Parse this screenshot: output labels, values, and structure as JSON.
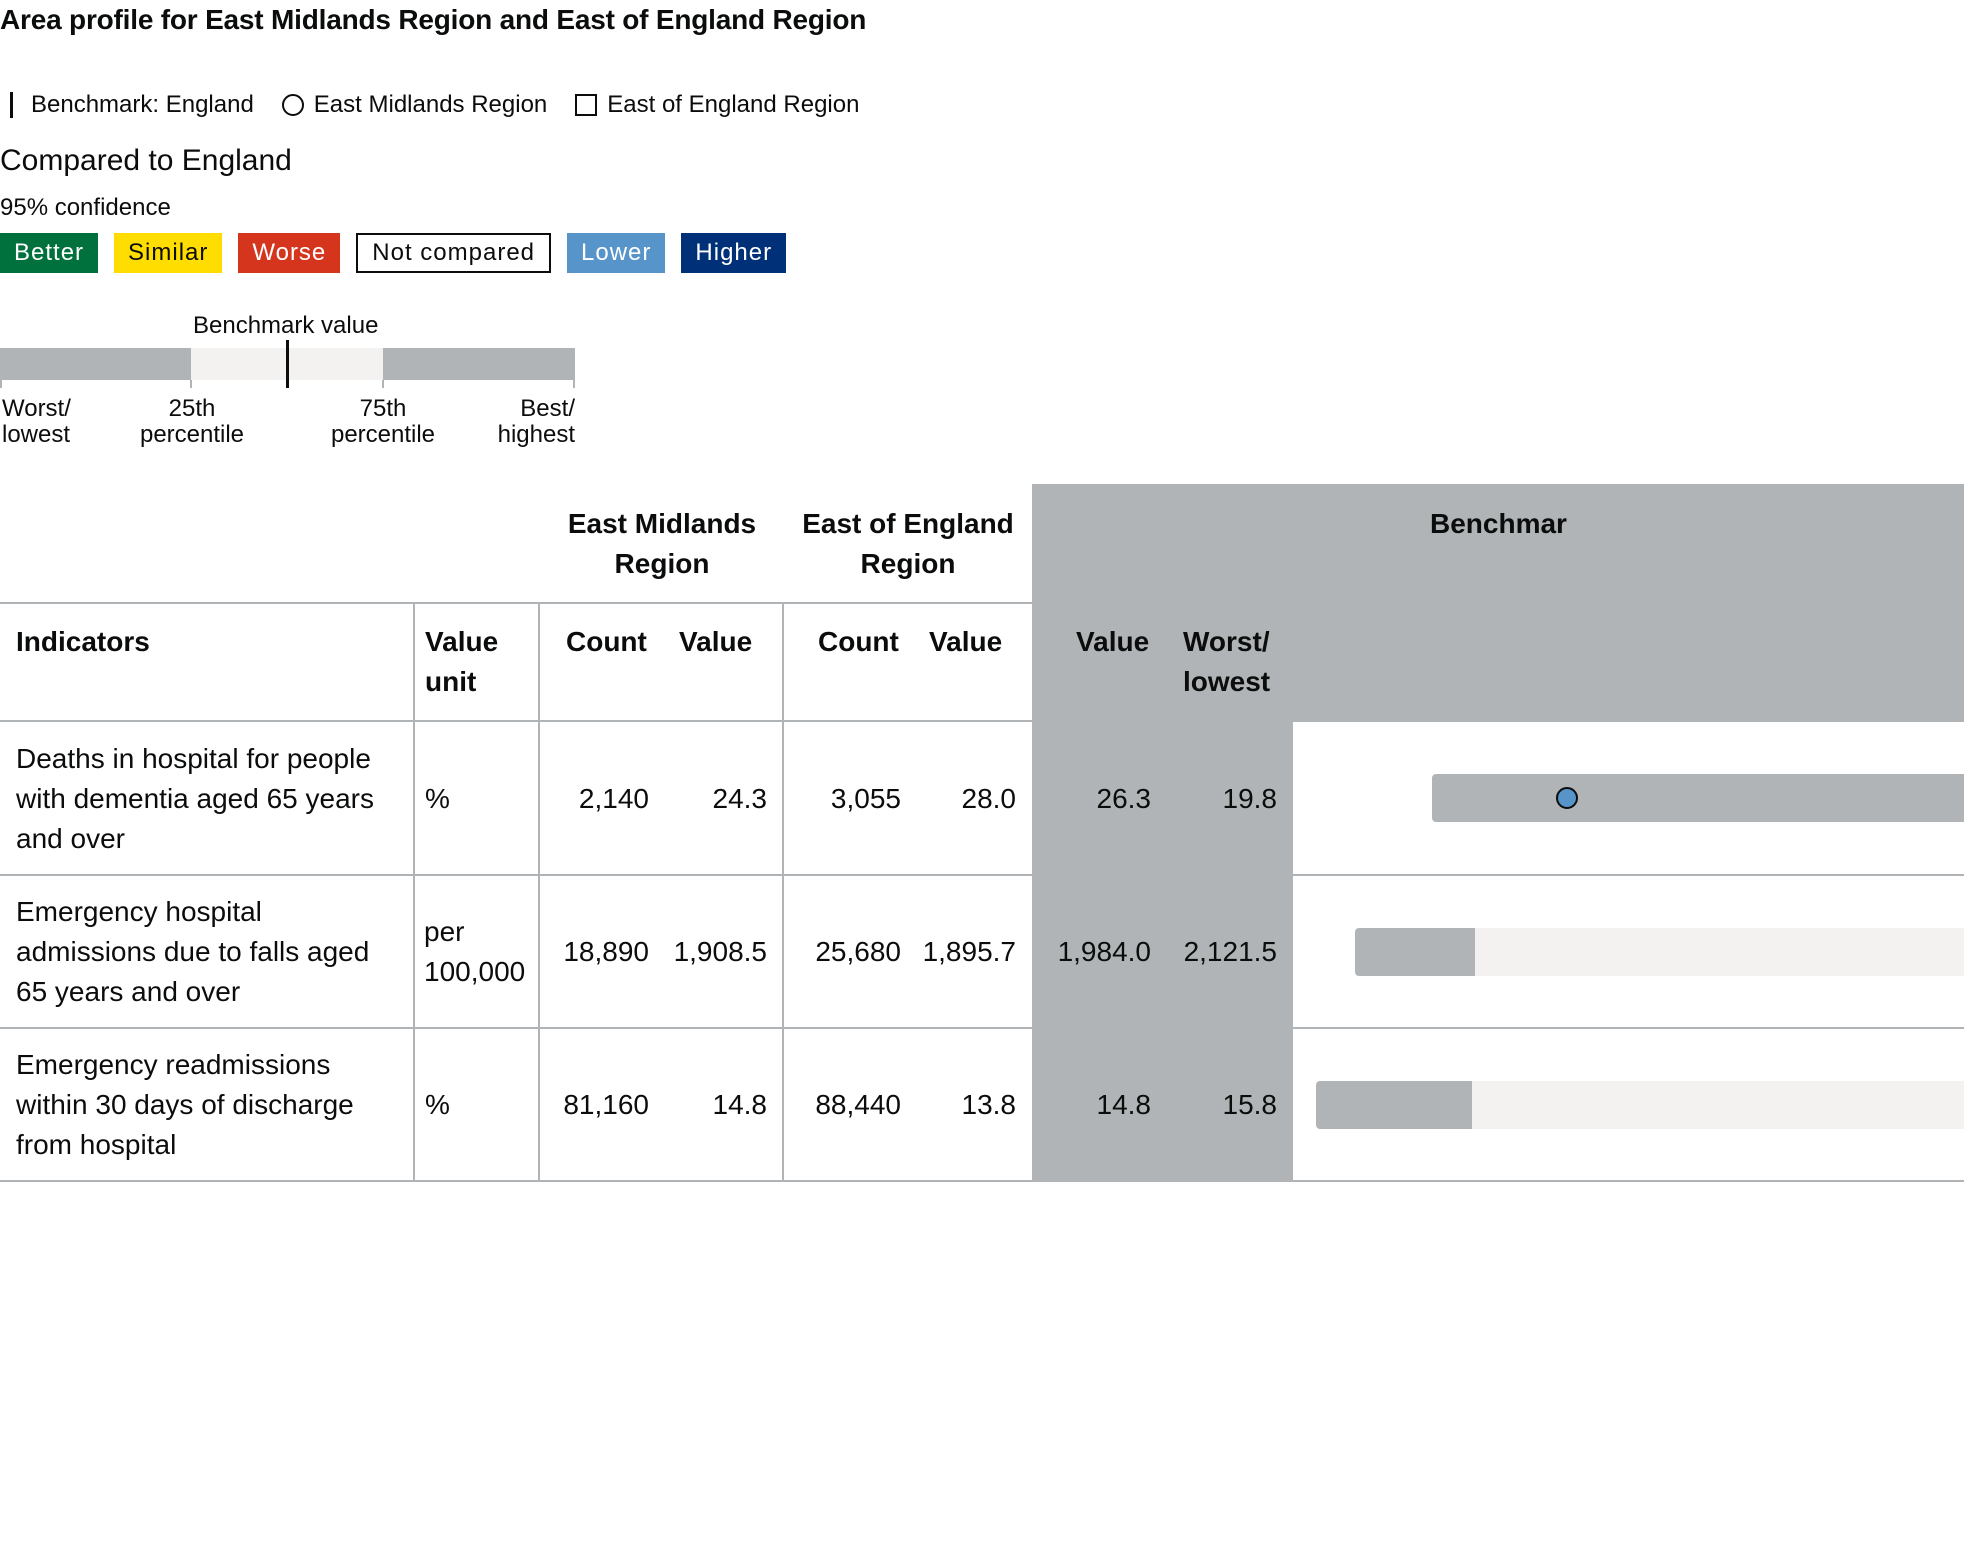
{
  "title": "Area profile for East Midlands Region and East of England Region",
  "legend": {
    "benchmark": "Benchmark: England",
    "area1": "East Midlands Region",
    "area2": "East of England Region"
  },
  "compared_heading": "Compared to England",
  "confidence": "95% confidence",
  "badges": {
    "better": "Better",
    "similar": "Similar",
    "worse": "Worse",
    "not_compared": "Not compared",
    "lower": "Lower",
    "higher": "Higher"
  },
  "scale": {
    "benchmark_value": "Benchmark value",
    "worst_1": "Worst/",
    "worst_2": "lowest",
    "p25_1": "25th",
    "p25_2": "percentile",
    "p75_1": "75th",
    "p75_2": "percentile",
    "best_1": "Best/",
    "best_2": "highest"
  },
  "table": {
    "group_area1_1": "East Midlands",
    "group_area1_2": "Region",
    "group_area2_1": "East of England",
    "group_area2_2": "Region",
    "group_benchmark": "Benchmar",
    "col_indicators": "Indicators",
    "col_value_unit_1": "Value",
    "col_value_unit_2": "unit",
    "col_count": "Count",
    "col_value": "Value",
    "col_worst_1": "Worst/",
    "col_worst_2": "lowest",
    "rows": [
      {
        "indicator_1": "Deaths in hospital for people",
        "indicator_2": "with dementia aged 65 years",
        "indicator_3": "and over",
        "unit_1": "%",
        "unit_2": "",
        "area1_count": "2,140",
        "area1_value": "24.3",
        "area2_count": "3,055",
        "area2_value": "28.0",
        "benchmark_value": "26.3",
        "worst_lowest": "19.8"
      },
      {
        "indicator_1": "Emergency hospital",
        "indicator_2": "admissions due to falls aged",
        "indicator_3": "65 years and over",
        "unit_1": "per",
        "unit_2": "100,000",
        "area1_count": "18,890",
        "area1_value": "1,908.5",
        "area2_count": "25,680",
        "area2_value": "1,895.7",
        "benchmark_value": "1,984.0",
        "worst_lowest": "2,121.5"
      },
      {
        "indicator_1": "Emergency readmissions",
        "indicator_2": "within 30 days of discharge",
        "indicator_3": "from hospital",
        "unit_1": "%",
        "unit_2": "",
        "area1_count": "81,160",
        "area1_value": "14.8",
        "area2_count": "88,440",
        "area2_value": "13.8",
        "benchmark_value": "14.8",
        "worst_lowest": "15.8"
      }
    ]
  },
  "colors": {
    "better": "#00703c",
    "similar": "#ffdd00",
    "worse": "#d4351c",
    "lower": "#5694ca",
    "higher": "#003078",
    "grey": "#b1b4b6",
    "light_grey": "#f3f2f1"
  }
}
